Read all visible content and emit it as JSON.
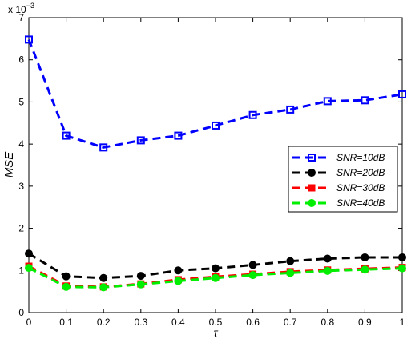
{
  "chart_data": {
    "type": "line",
    "xlabel": "τ",
    "ylabel": "MSE",
    "exponent_base": "x 10",
    "exponent_power": "−3",
    "xlim": [
      0,
      1
    ],
    "ylim": [
      0,
      7
    ],
    "xticks": [
      "0",
      "0.1",
      "0.2",
      "0.3",
      "0.4",
      "0.5",
      "0.6",
      "0.7",
      "0.8",
      "0.9",
      "1"
    ],
    "yticks": [
      "0",
      "1",
      "2",
      "3",
      "4",
      "5",
      "6",
      "7"
    ],
    "x": [
      0,
      0.1,
      0.2,
      0.3,
      0.4,
      0.5,
      0.6,
      0.7,
      0.8,
      0.9,
      1.0
    ],
    "grid": false,
    "legend_position": "center-right",
    "series": [
      {
        "name": "SNR=10dB",
        "color": "#0000ff",
        "marker": "square-open",
        "values": [
          6.48,
          4.2,
          3.92,
          4.09,
          4.2,
          4.44,
          4.69,
          4.82,
          5.02,
          5.04,
          5.18
        ]
      },
      {
        "name": "SNR=20dB",
        "color": "#000000",
        "marker": "circle-filled",
        "values": [
          1.4,
          0.86,
          0.82,
          0.87,
          1.0,
          1.05,
          1.13,
          1.22,
          1.28,
          1.31,
          1.31
        ]
      },
      {
        "name": "SNR=30dB",
        "color": "#ff0000",
        "marker": "square-filled",
        "values": [
          1.1,
          0.63,
          0.61,
          0.68,
          0.78,
          0.85,
          0.91,
          0.97,
          1.01,
          1.04,
          1.07
        ]
      },
      {
        "name": "SNR=40dB",
        "color": "#00ee00",
        "marker": "circle-filled",
        "values": [
          1.06,
          0.61,
          0.6,
          0.67,
          0.75,
          0.82,
          0.89,
          0.94,
          0.99,
          1.02,
          1.05
        ]
      }
    ]
  }
}
